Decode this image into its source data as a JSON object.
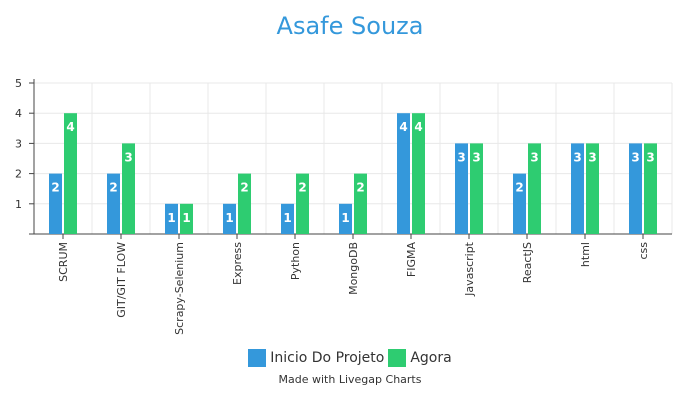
{
  "chart_data": {
    "type": "bar",
    "title": "Asafe Souza",
    "xlabel": "",
    "ylabel": "",
    "categories": [
      "SCRUM",
      "GIT/GIT FLOW",
      "Scrapy-Selenium",
      "Express",
      "Python",
      "MongoDB",
      "FIGMA",
      "Javascript",
      "ReactJS",
      "html",
      "css"
    ],
    "series": [
      {
        "name": "Inicio Do Projeto",
        "color": "#3498db",
        "values": [
          2,
          2,
          1,
          1,
          1,
          1,
          4,
          3,
          2,
          3,
          3
        ]
      },
      {
        "name": "Agora",
        "color": "#2ecc71",
        "values": [
          4,
          3,
          1,
          2,
          2,
          2,
          4,
          3,
          3,
          3,
          3
        ]
      }
    ],
    "ylim": [
      0,
      5
    ],
    "yticks": [
      1,
      2,
      3,
      4,
      5
    ],
    "grid": true,
    "legend": "bottom"
  },
  "credit": "Made with Livegap Charts"
}
